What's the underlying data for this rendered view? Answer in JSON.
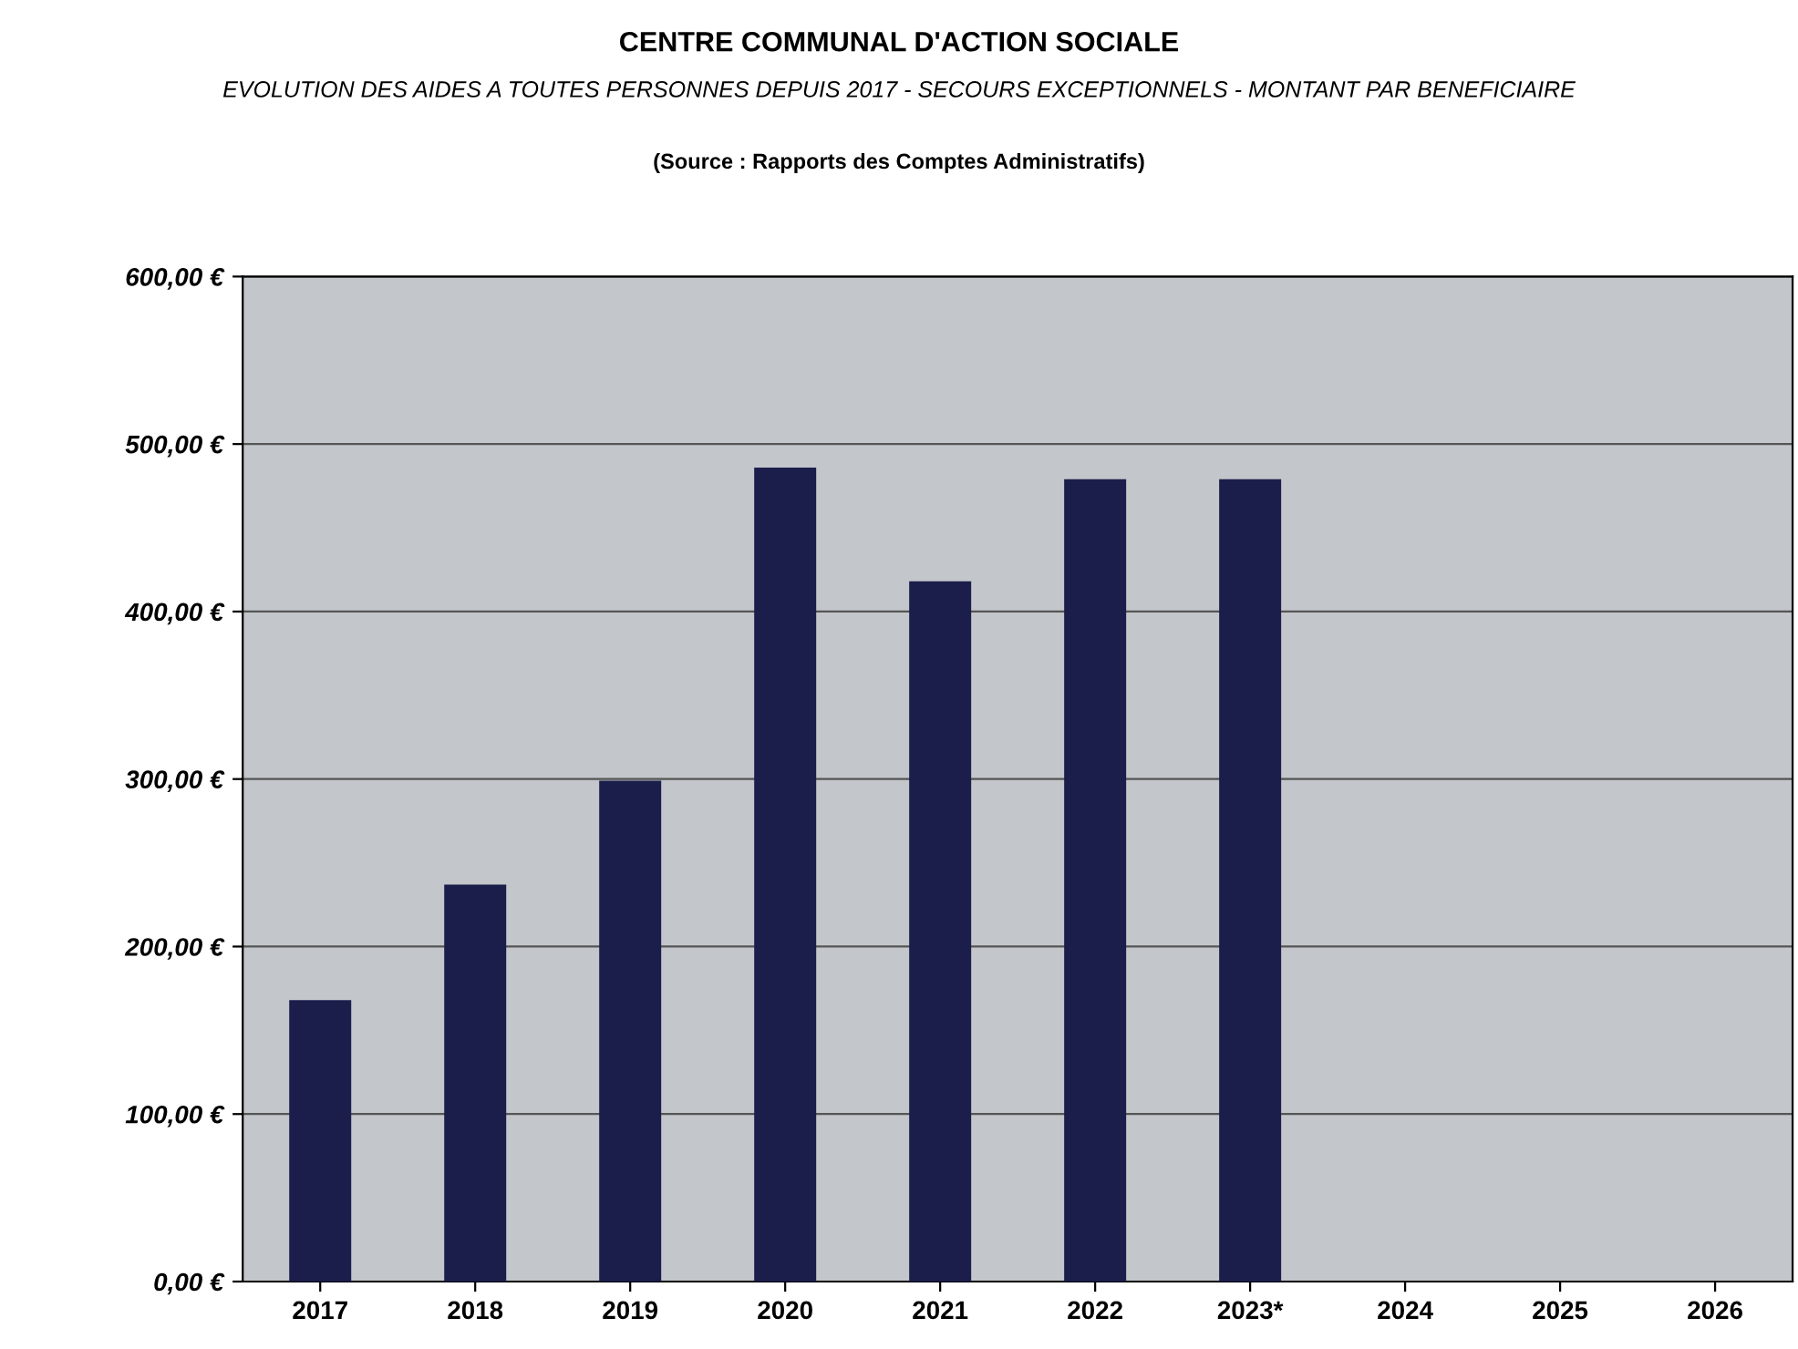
{
  "chart_data": {
    "type": "bar",
    "title": "CENTRE COMMUNAL D'ACTION SOCIALE",
    "subtitle": "EVOLUTION DES AIDES A TOUTES PERSONNES DEPUIS 2017 - SECOURS EXCEPTIONNELS - MONTANT PAR BENEFICIAIRE",
    "annotations": [
      "(Source : Rapports des Comptes Administratifs)"
    ],
    "categories": [
      "2017",
      "2018",
      "2019",
      "2020",
      "2021",
      "2022",
      "2023*",
      "2024",
      "2025",
      "2026"
    ],
    "values": [
      168,
      237,
      299,
      486,
      418,
      479,
      479,
      null,
      null,
      null
    ],
    "color": "#1b1e4b",
    "ylim": [
      0,
      600
    ],
    "yticks": [
      {
        "value": 0,
        "label": "0,00 €"
      },
      {
        "value": 100,
        "label": "100,00 €"
      },
      {
        "value": 200,
        "label": "200,00 €"
      },
      {
        "value": 300,
        "label": "300,00 €"
      },
      {
        "value": 400,
        "label": "400,00 €"
      },
      {
        "value": 500,
        "label": "500,00 €"
      },
      {
        "value": 600,
        "label": "600,00 €"
      }
    ],
    "grid": "y"
  }
}
